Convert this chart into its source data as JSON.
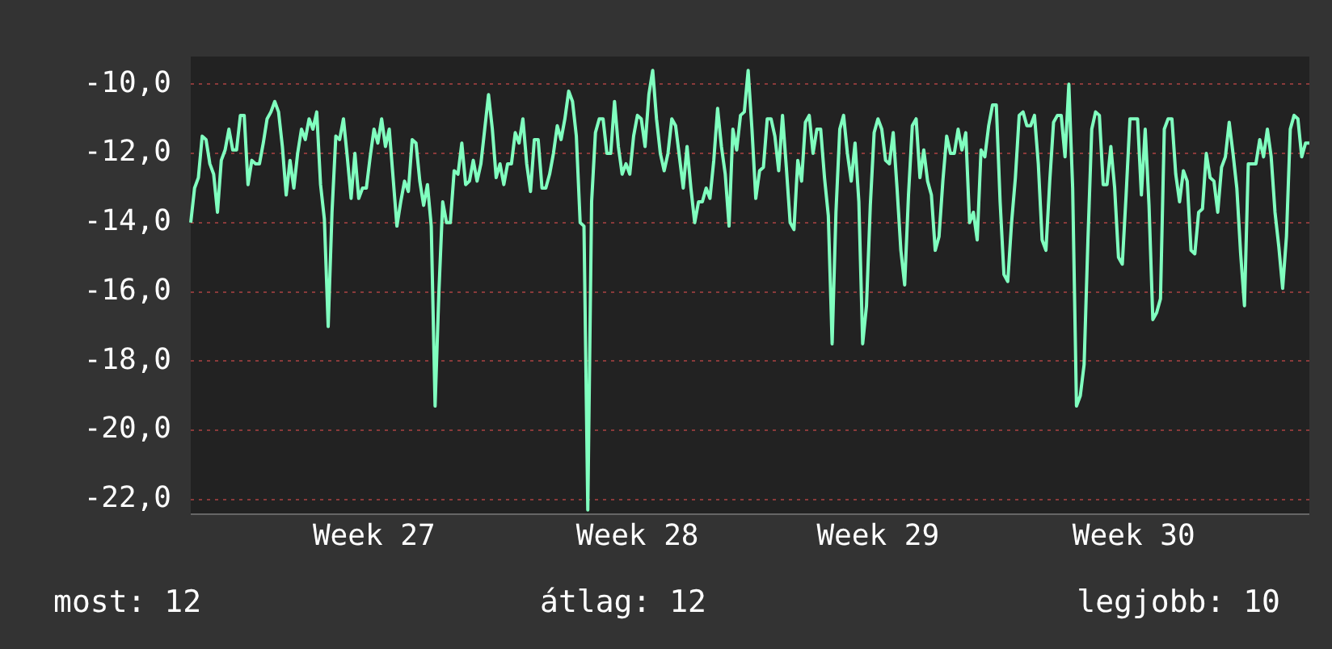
{
  "chart_data": {
    "type": "line",
    "categories": [
      null,
      null,
      null,
      null,
      null,
      null,
      null,
      null,
      null,
      null,
      null,
      null,
      null,
      null,
      null,
      null,
      null,
      null,
      null,
      null,
      null,
      null,
      null,
      null,
      null,
      null,
      null,
      null,
      null,
      null,
      null,
      null,
      null,
      null,
      null,
      null,
      null,
      null,
      null,
      null,
      null,
      null,
      null,
      null,
      null,
      null,
      null,
      null,
      "Week 27",
      null,
      null,
      null,
      null,
      null,
      null,
      null,
      null,
      null,
      null,
      null,
      null,
      null,
      null,
      null,
      null,
      null,
      null,
      null,
      null,
      null,
      null,
      null,
      null,
      null,
      null,
      null,
      null,
      null,
      null,
      null,
      null,
      null,
      null,
      null,
      null,
      null,
      null,
      null,
      null,
      null,
      null,
      null,
      null,
      null,
      null,
      null,
      null,
      null,
      null,
      null,
      null,
      null,
      null,
      null,
      null,
      null,
      null,
      null,
      null,
      null,
      null,
      null,
      null,
      null,
      null,
      null,
      null,
      "Week 28",
      null,
      null,
      null,
      null,
      null,
      null,
      null,
      null,
      null,
      null,
      null,
      null,
      null,
      null,
      null,
      null,
      null,
      null,
      null,
      null,
      null,
      null,
      null,
      null,
      null,
      null,
      null,
      null,
      null,
      null,
      null,
      null,
      null,
      null,
      null,
      null,
      null,
      null,
      null,
      null,
      null,
      null,
      null,
      null,
      null,
      null,
      null,
      null,
      null,
      null,
      null,
      null,
      null,
      null,
      null,
      null,
      null,
      null,
      null,
      null,
      null,
      null,
      "Week 29",
      null,
      null,
      null,
      null,
      null,
      null,
      null,
      null,
      null,
      null,
      null,
      null,
      null,
      null,
      null,
      null,
      null,
      null,
      null,
      null,
      null,
      null,
      null,
      null,
      null,
      null,
      null,
      null,
      null,
      null,
      null,
      null,
      null,
      null,
      null,
      null,
      null,
      null,
      null,
      null,
      null,
      null,
      null,
      null,
      null,
      null,
      null,
      null,
      null,
      null,
      null,
      null,
      null,
      null,
      null,
      null,
      null,
      null,
      null,
      null,
      null,
      null,
      null,
      null,
      null,
      null,
      "Week 30",
      null,
      null,
      null,
      null,
      null,
      null,
      null,
      null,
      null,
      null,
      null,
      null,
      null,
      null,
      null,
      null,
      null,
      null,
      null,
      null,
      null,
      null,
      null,
      null,
      null,
      null,
      null,
      null,
      null,
      null,
      null,
      null,
      null,
      null,
      null,
      null,
      null,
      null,
      null,
      null,
      null,
      null,
      null,
      null,
      null,
      null
    ],
    "ylim": [
      -22.4,
      -9.2
    ],
    "yticks": [
      {
        "value": -10,
        "label": "-10,0"
      },
      {
        "value": -12,
        "label": "-12,0"
      },
      {
        "value": -14,
        "label": "-14,0"
      },
      {
        "value": -16,
        "label": "-16,0"
      },
      {
        "value": -18,
        "label": "-18,0"
      },
      {
        "value": -20,
        "label": "-20,0"
      },
      {
        "value": -22,
        "label": "-22,0"
      }
    ],
    "grid": "y",
    "legend": false,
    "marker": "none",
    "line_style": "solid",
    "annotations": [
      "most: 12",
      "átlag: 12",
      "legjobb: 10"
    ],
    "series": [
      {
        "color": "#80ffbf",
        "values": [
          -14.0,
          -13.0,
          -12.7,
          -11.5,
          -11.6,
          -12.3,
          -12.6,
          -13.7,
          -12.2,
          -11.9,
          -11.3,
          -11.9,
          -11.9,
          -10.9,
          -10.9,
          -12.9,
          -12.2,
          -12.3,
          -12.3,
          -11.7,
          -11.0,
          -10.8,
          -10.5,
          -10.8,
          -11.8,
          -13.2,
          -12.2,
          -13.0,
          -12.0,
          -11.3,
          -11.6,
          -11.0,
          -11.3,
          -10.8,
          -12.9,
          -13.9,
          -17.0,
          -13.7,
          -11.5,
          -11.6,
          -11.0,
          -12.1,
          -13.3,
          -12.0,
          -13.3,
          -13.0,
          -13.0,
          -12.1,
          -11.3,
          -11.7,
          -11.0,
          -11.8,
          -11.3,
          -12.7,
          -14.1,
          -13.4,
          -12.8,
          -13.1,
          -11.6,
          -11.7,
          -12.8,
          -13.5,
          -12.9,
          -14.1,
          -19.3,
          -16.0,
          -13.4,
          -14.0,
          -14.0,
          -12.5,
          -12.6,
          -11.7,
          -12.9,
          -12.8,
          -12.2,
          -12.8,
          -12.3,
          -11.3,
          -10.3,
          -11.3,
          -12.7,
          -12.3,
          -12.9,
          -12.3,
          -12.3,
          -11.4,
          -11.7,
          -11.0,
          -12.3,
          -13.1,
          -11.6,
          -11.6,
          -13.0,
          -13.0,
          -12.6,
          -12.0,
          -11.2,
          -11.6,
          -11.0,
          -10.2,
          -10.5,
          -11.5,
          -14.0,
          -14.1,
          -22.3,
          -13.4,
          -11.4,
          -11.0,
          -11.0,
          -12.0,
          -12.0,
          -10.5,
          -11.8,
          -12.6,
          -12.3,
          -12.6,
          -11.5,
          -10.9,
          -11.0,
          -11.8,
          -10.3,
          -9.6,
          -11.0,
          -12.0,
          -12.5,
          -12.0,
          -11.0,
          -11.2,
          -12.1,
          -13.0,
          -11.8,
          -13.0,
          -14.0,
          -13.4,
          -13.4,
          -13.0,
          -13.3,
          -12.2,
          -10.7,
          -11.8,
          -12.6,
          -14.1,
          -11.3,
          -11.9,
          -10.9,
          -10.8,
          -9.6,
          -11.3,
          -13.3,
          -12.5,
          -12.4,
          -11.0,
          -11.0,
          -11.5,
          -12.5,
          -10.9,
          -12.4,
          -14.0,
          -14.2,
          -12.2,
          -12.8,
          -11.1,
          -10.9,
          -12.0,
          -11.3,
          -11.3,
          -12.7,
          -13.8,
          -17.5,
          -13.7,
          -11.3,
          -10.9,
          -12.0,
          -12.8,
          -11.7,
          -13.4,
          -17.5,
          -16.4,
          -13.5,
          -11.4,
          -11.0,
          -11.3,
          -12.2,
          -12.3,
          -11.4,
          -13.0,
          -14.8,
          -15.8,
          -13.2,
          -11.2,
          -11.0,
          -12.7,
          -11.9,
          -12.8,
          -13.2,
          -14.8,
          -14.4,
          -12.8,
          -11.5,
          -12.0,
          -12.0,
          -11.3,
          -11.9,
          -11.4,
          -14.0,
          -13.7,
          -14.5,
          -11.9,
          -12.1,
          -11.2,
          -10.6,
          -10.6,
          -13.4,
          -15.5,
          -15.7,
          -14.0,
          -12.7,
          -10.9,
          -10.8,
          -11.2,
          -11.2,
          -10.9,
          -12.3,
          -14.5,
          -14.8,
          -12.8,
          -11.1,
          -10.9,
          -10.9,
          -12.1,
          -10.0,
          -13.0,
          -19.3,
          -19.0,
          -18.1,
          -14.5,
          -11.3,
          -10.8,
          -10.9,
          -12.9,
          -12.9,
          -11.8,
          -13.0,
          -15.0,
          -15.2,
          -13.2,
          -11.0,
          -11.0,
          -11.0,
          -13.2,
          -11.3,
          -13.5,
          -16.8,
          -16.6,
          -16.2,
          -11.3,
          -11.0,
          -11.0,
          -12.6,
          -13.4,
          -12.5,
          -12.8,
          -14.8,
          -14.9,
          -13.7,
          -13.6,
          -12.0,
          -12.7,
          -12.8,
          -13.7,
          -12.4,
          -12.1,
          -11.1,
          -12.0,
          -13.0,
          -14.9,
          -16.4,
          -12.3,
          -12.3,
          -12.3,
          -11.6,
          -12.1,
          -11.3,
          -12.1,
          -13.7,
          -14.7,
          -15.9,
          -14.4,
          -11.3,
          -10.9,
          -11.0,
          -12.1,
          -11.7,
          -11.7
        ]
      }
    ]
  }
}
